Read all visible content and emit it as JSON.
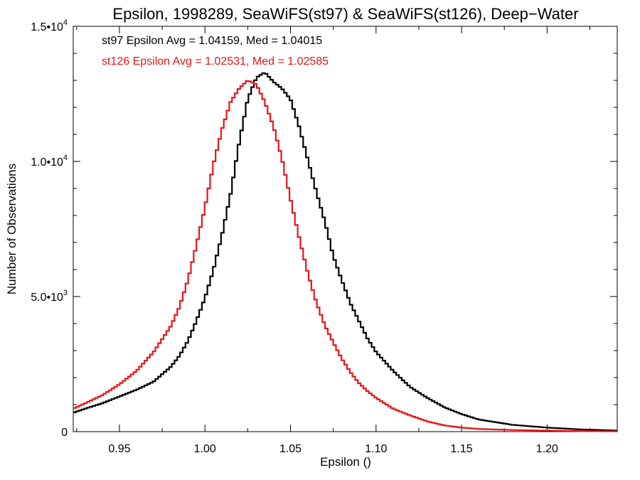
{
  "chart_data": {
    "type": "line",
    "step": true,
    "title": "Epsilon, 1998289, SeaWiFS(st97) & SeaWiFS(st126), Deep−Water",
    "xlabel": "Epsilon ()",
    "ylabel": "Number of Observations",
    "xlim": [
      0.923,
      1.241
    ],
    "ylim": [
      0,
      15000
    ],
    "x_ticks": [
      {
        "value": 0.95,
        "label": "0.95"
      },
      {
        "value": 1.0,
        "label": "1.00"
      },
      {
        "value": 1.05,
        "label": "1.05"
      },
      {
        "value": 1.1,
        "label": "1.10"
      },
      {
        "value": 1.15,
        "label": "1.15"
      },
      {
        "value": 1.2,
        "label": "1.20"
      }
    ],
    "y_ticks": [
      {
        "value": 0,
        "mantissa": "0",
        "exponent": ""
      },
      {
        "value": 5000,
        "mantissa": "5.0•10",
        "exponent": "3"
      },
      {
        "value": 10000,
        "mantissa": "1.0•10",
        "exponent": "4"
      },
      {
        "value": 15000,
        "mantissa": "1.5•10",
        "exponent": "4"
      }
    ],
    "grid": false,
    "annotations": [
      {
        "text": "st97 Epsilon Avg = 1.04159, Med = 1.04015",
        "color": "#000000"
      },
      {
        "text": "st126 Epsilon Avg = 1.02531, Med = 1.02585",
        "color": "#e8141b"
      }
    ],
    "series": [
      {
        "color": "#000000",
        "x": [
          0.923,
          0.93,
          0.94,
          0.95,
          0.96,
          0.97,
          0.98,
          0.985,
          0.99,
          0.995,
          1.0,
          1.005,
          1.01,
          1.015,
          1.02,
          1.025,
          1.03,
          1.035,
          1.04,
          1.045,
          1.05,
          1.055,
          1.06,
          1.065,
          1.07,
          1.075,
          1.08,
          1.085,
          1.09,
          1.095,
          1.1,
          1.11,
          1.12,
          1.13,
          1.14,
          1.15,
          1.16,
          1.18,
          1.2,
          1.22,
          1.241
        ],
        "y": [
          700,
          850,
          1050,
          1300,
          1550,
          1850,
          2400,
          2800,
          3350,
          4100,
          4950,
          6000,
          7300,
          8800,
          10700,
          12300,
          13100,
          13300,
          12950,
          12700,
          12300,
          11300,
          10100,
          8900,
          7800,
          6500,
          5600,
          4750,
          4100,
          3450,
          2950,
          2250,
          1650,
          1250,
          900,
          650,
          450,
          250,
          150,
          80,
          40
        ]
      },
      {
        "color": "#e8141b",
        "x": [
          0.923,
          0.93,
          0.94,
          0.95,
          0.96,
          0.97,
          0.98,
          0.985,
          0.99,
          0.995,
          1.0,
          1.005,
          1.01,
          1.015,
          1.02,
          1.025,
          1.03,
          1.035,
          1.04,
          1.045,
          1.05,
          1.055,
          1.06,
          1.065,
          1.07,
          1.075,
          1.08,
          1.085,
          1.09,
          1.095,
          1.1,
          1.11,
          1.12,
          1.13,
          1.14,
          1.15,
          1.16,
          1.18,
          1.2,
          1.22,
          1.241
        ],
        "y": [
          850,
          1050,
          1350,
          1750,
          2250,
          2950,
          3900,
          4600,
          5600,
          6900,
          8300,
          9900,
          11200,
          12200,
          12700,
          13000,
          12850,
          12200,
          11300,
          10100,
          8600,
          7200,
          5900,
          4800,
          3950,
          3300,
          2700,
          2200,
          1800,
          1500,
          1250,
          850,
          600,
          380,
          230,
          150,
          100,
          60,
          40,
          20,
          10
        ]
      }
    ]
  }
}
